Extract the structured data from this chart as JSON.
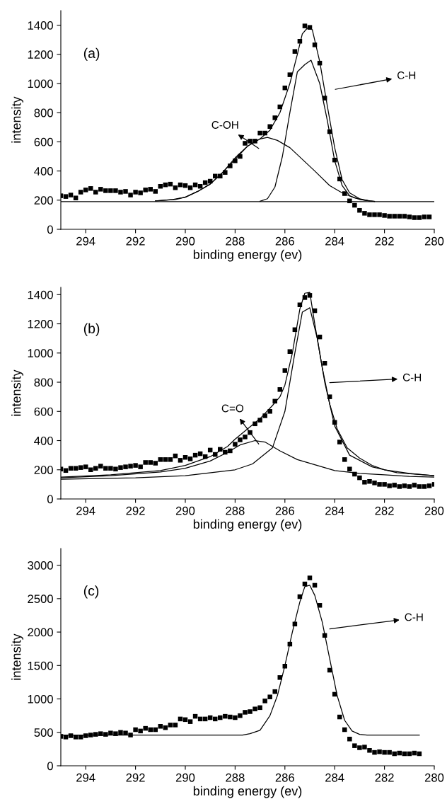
{
  "chart_data": [
    {
      "type": "scatter",
      "xlabel": "binding energy (ev)",
      "ylabel": "intensity",
      "xlim": [
        295,
        280
      ],
      "xticks": [
        294,
        292,
        290,
        288,
        286,
        284,
        282,
        280
      ],
      "ylim": [
        0,
        1500
      ],
      "yticks": [
        0,
        200,
        400,
        600,
        800,
        1000,
        1200,
        1400
      ],
      "grid": false,
      "annotations": [
        "(a)",
        "C-OH",
        "C-H"
      ],
      "series": [
        {
          "marker": "square",
          "color": "#000000",
          "x": [
            295,
            294.8,
            294.6,
            294.4,
            294.2,
            294.0,
            293.8,
            293.6,
            293.4,
            293.2,
            293.0,
            292.8,
            292.6,
            292.4,
            292.2,
            292.0,
            291.8,
            291.6,
            291.4,
            291.2,
            291.0,
            290.8,
            290.6,
            290.4,
            290.2,
            290.0,
            289.8,
            289.6,
            289.4,
            289.2,
            289.0,
            288.8,
            288.6,
            288.4,
            288.2,
            288.0,
            287.8,
            287.6,
            287.4,
            287.2,
            287.0,
            286.8,
            286.6,
            286.4,
            286.2,
            286.0,
            285.8,
            285.6,
            285.4,
            285.2,
            285.0,
            284.8,
            284.6,
            284.4,
            284.2,
            284.0,
            283.8,
            283.6,
            283.4,
            283.2,
            283.0,
            282.8,
            282.6,
            282.4,
            282.2,
            282.0,
            281.8,
            281.6,
            281.4,
            281.2,
            281.0,
            280.8,
            280.6,
            280.4,
            280.2
          ],
          "values": [
            230,
            225,
            235,
            215,
            255,
            270,
            280,
            255,
            275,
            265,
            265,
            265,
            255,
            260,
            235,
            255,
            250,
            270,
            275,
            260,
            295,
            305,
            310,
            285,
            305,
            300,
            285,
            305,
            295,
            320,
            330,
            365,
            365,
            390,
            435,
            470,
            500,
            590,
            605,
            605,
            660,
            660,
            705,
            765,
            840,
            970,
            1060,
            1220,
            1290,
            1395,
            1385,
            1265,
            1140,
            900,
            670,
            475,
            345,
            245,
            195,
            165,
            130,
            110,
            100,
            100,
            100,
            95,
            90,
            90,
            90,
            90,
            85,
            80,
            80,
            85,
            85
          ]
        },
        {
          "type": "line",
          "marker": "none",
          "line_style": "solid",
          "color": "#000000",
          "x": [
            291.2,
            290.4,
            290,
            289.5,
            289,
            288.5,
            288,
            287.5,
            287,
            286.6,
            286.2,
            285.8,
            285.5,
            285.3,
            285.1,
            284.9,
            284.6,
            284.3,
            284.0,
            283.7,
            283.4,
            283.0,
            282.6,
            282.4
          ],
          "values": [
            195,
            205,
            220,
            260,
            310,
            390,
            490,
            570,
            620,
            680,
            800,
            1000,
            1200,
            1340,
            1380,
            1370,
            1150,
            850,
            560,
            340,
            250,
            210,
            195,
            192
          ]
        },
        {
          "type": "line",
          "marker": "none",
          "line_style": "solid",
          "color": "#000000",
          "x": [
            291.2,
            290.5,
            290,
            289.5,
            289,
            288.5,
            288,
            287.5,
            287,
            286.7,
            286.3,
            285.8,
            285.3,
            284.8,
            284.2,
            283.7,
            283.2,
            282.8,
            282.4
          ],
          "values": [
            195,
            205,
            220,
            260,
            310,
            390,
            480,
            570,
            620,
            630,
            610,
            560,
            480,
            400,
            300,
            250,
            215,
            200,
            192
          ]
        },
        {
          "type": "line",
          "marker": "none",
          "line_style": "solid",
          "color": "#000000",
          "x": [
            287.0,
            286.7,
            286.4,
            286.1,
            285.8,
            285.5,
            285.2,
            284.95,
            284.6,
            284.3,
            284.0,
            283.7,
            283.4,
            283.0,
            282.6
          ],
          "values": [
            192,
            210,
            290,
            500,
            800,
            1080,
            1130,
            1160,
            1000,
            750,
            470,
            300,
            230,
            205,
            195
          ]
        },
        {
          "type": "line",
          "marker": "none",
          "line_style": "solid",
          "color": "#000000",
          "x": [
            295,
            280
          ],
          "values": [
            190,
            190
          ]
        }
      ]
    },
    {
      "type": "scatter",
      "xlabel": "binding energy (ev)",
      "ylabel": "intensity",
      "xlim": [
        295,
        280
      ],
      "xticks": [
        294,
        292,
        290,
        288,
        286,
        284,
        282,
        280
      ],
      "ylim": [
        0,
        1450
      ],
      "yticks": [
        0,
        200,
        400,
        600,
        800,
        1000,
        1200,
        1400
      ],
      "grid": false,
      "annotations": [
        "(b)",
        "C=O",
        "C-H"
      ],
      "series": [
        {
          "marker": "square",
          "color": "#000000",
          "x": [
            295,
            294.8,
            294.6,
            294.4,
            294.2,
            294.0,
            293.8,
            293.6,
            293.4,
            293.2,
            293.0,
            292.8,
            292.6,
            292.4,
            292.2,
            292.0,
            291.8,
            291.6,
            291.4,
            291.2,
            291.0,
            290.8,
            290.6,
            290.4,
            290.2,
            290.0,
            289.8,
            289.6,
            289.4,
            289.2,
            289.0,
            288.8,
            288.6,
            288.4,
            288.2,
            288.0,
            287.8,
            287.6,
            287.4,
            287.2,
            287.0,
            286.8,
            286.6,
            286.4,
            286.2,
            286.0,
            285.8,
            285.6,
            285.4,
            285.2,
            285.0,
            284.8,
            284.6,
            284.4,
            284.2,
            284.0,
            283.8,
            283.6,
            283.4,
            283.2,
            283.0,
            282.8,
            282.6,
            282.4,
            282.2,
            282.0,
            281.8,
            281.6,
            281.4,
            281.2,
            281.0,
            280.8,
            280.6,
            280.4,
            280.2,
            280.0
          ],
          "values": [
            205,
            195,
            210,
            210,
            215,
            220,
            200,
            210,
            225,
            210,
            210,
            205,
            215,
            220,
            225,
            230,
            220,
            250,
            250,
            245,
            270,
            270,
            270,
            295,
            265,
            285,
            275,
            300,
            310,
            290,
            335,
            305,
            340,
            320,
            330,
            375,
            405,
            425,
            455,
            515,
            540,
            570,
            600,
            670,
            750,
            880,
            1010,
            1160,
            1330,
            1380,
            1395,
            1290,
            1110,
            930,
            700,
            525,
            390,
            270,
            205,
            170,
            145,
            115,
            120,
            110,
            100,
            100,
            90,
            95,
            85,
            90,
            85,
            95,
            85,
            85,
            90,
            100
          ]
        },
        {
          "type": "line",
          "marker": "none",
          "line_style": "solid",
          "color": "#000000",
          "x": [
            295,
            293,
            291,
            290,
            289,
            288.3,
            288,
            287.5,
            287,
            286.5,
            286.2,
            286,
            285.7,
            285.4,
            285.2,
            285.0,
            284.8,
            284.5,
            284.2,
            283.9,
            283.5,
            283,
            282.5,
            282,
            281,
            280
          ],
          "values": [
            150,
            165,
            195,
            230,
            290,
            360,
            410,
            480,
            550,
            640,
            700,
            780,
            1000,
            1300,
            1410,
            1415,
            1200,
            900,
            650,
            480,
            350,
            280,
            230,
            200,
            175,
            160
          ]
        },
        {
          "type": "line",
          "marker": "none",
          "line_style": "solid",
          "color": "#000000",
          "x": [
            295,
            293,
            291,
            290,
            289,
            288.3,
            287.8,
            287.2,
            286.8,
            286.2,
            285.5,
            284.8,
            284,
            283,
            282,
            281,
            280
          ],
          "values": [
            145,
            160,
            185,
            210,
            260,
            320,
            370,
            400,
            390,
            330,
            270,
            235,
            195,
            175,
            165,
            155,
            150
          ]
        },
        {
          "type": "line",
          "marker": "none",
          "line_style": "solid",
          "color": "#000000",
          "x": [
            295,
            292,
            290,
            288,
            287.3,
            286.5,
            286,
            285.6,
            285.3,
            285.0,
            284.7,
            284.4,
            284,
            283.4,
            282.5,
            281.5,
            280
          ],
          "values": [
            135,
            145,
            160,
            200,
            240,
            350,
            600,
            1000,
            1280,
            1310,
            1100,
            800,
            500,
            300,
            220,
            180,
            160
          ]
        }
      ]
    },
    {
      "type": "scatter",
      "xlabel": "binding energy (ev)",
      "ylabel": "intensity",
      "xlim": [
        295,
        280
      ],
      "xticks": [
        294,
        292,
        290,
        288,
        286,
        284,
        282,
        280
      ],
      "ylim": [
        0,
        3250
      ],
      "yticks": [
        0,
        500,
        1000,
        1500,
        2000,
        2500,
        3000
      ],
      "grid": false,
      "annotations": [
        "(c)",
        "C-H"
      ],
      "series": [
        {
          "marker": "square",
          "color": "#000000",
          "x": [
            295,
            294.8,
            294.6,
            294.4,
            294.2,
            294.0,
            293.8,
            293.6,
            293.4,
            293.2,
            293.0,
            292.8,
            292.6,
            292.4,
            292.2,
            292.0,
            291.8,
            291.6,
            291.4,
            291.2,
            291.0,
            290.8,
            290.6,
            290.4,
            290.2,
            290.0,
            289.8,
            289.6,
            289.4,
            289.2,
            289.0,
            288.8,
            288.6,
            288.4,
            288.2,
            288.0,
            287.8,
            287.6,
            287.4,
            287.2,
            287.0,
            286.8,
            286.6,
            286.4,
            286.2,
            286.0,
            285.8,
            285.6,
            285.4,
            285.2,
            285.0,
            284.8,
            284.6,
            284.4,
            284.2,
            284.0,
            283.8,
            283.6,
            283.4,
            283.2,
            283.0,
            282.8,
            282.6,
            282.4,
            282.2,
            282.0,
            281.8,
            281.6,
            281.4,
            281.2,
            281.0,
            280.8,
            280.6
          ],
          "values": [
            440,
            430,
            450,
            430,
            430,
            450,
            460,
            470,
            480,
            470,
            490,
            480,
            500,
            490,
            460,
            540,
            520,
            560,
            540,
            540,
            590,
            570,
            610,
            610,
            700,
            690,
            660,
            740,
            700,
            700,
            720,
            700,
            720,
            740,
            730,
            720,
            750,
            800,
            810,
            850,
            870,
            970,
            1030,
            1110,
            1320,
            1490,
            1820,
            2120,
            2530,
            2720,
            2810,
            2700,
            2400,
            1950,
            1430,
            1070,
            730,
            540,
            400,
            300,
            270,
            280,
            230,
            200,
            210,
            200,
            200,
            180,
            190,
            180,
            180,
            190,
            180
          ]
        },
        {
          "type": "line",
          "marker": "none",
          "line_style": "solid",
          "color": "#000000",
          "x": [
            295,
            287.7,
            287.4,
            287,
            286.6,
            286.3,
            286.0,
            285.7,
            285.4,
            285.2,
            285.0,
            284.8,
            284.5,
            284.2,
            283.9,
            283.6,
            283.3,
            283.0,
            282.7,
            280.6
          ],
          "values": [
            460,
            460,
            480,
            530,
            750,
            1050,
            1500,
            2000,
            2450,
            2680,
            2700,
            2550,
            2150,
            1600,
            1050,
            680,
            520,
            470,
            460,
            460
          ]
        }
      ]
    }
  ]
}
